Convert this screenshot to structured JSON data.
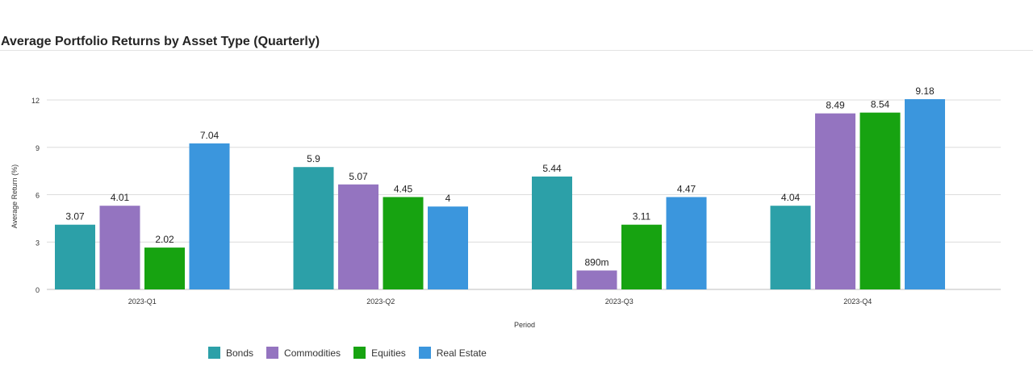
{
  "chart_data": {
    "type": "bar",
    "title": "Average Portfolio Returns by Asset Type (Quarterly)",
    "xlabel": "Period",
    "ylabel": "Average Return (%)",
    "categories": [
      "2023-Q1",
      "2023-Q2",
      "2023-Q3",
      "2023-Q4"
    ],
    "ylim": [
      0,
      12
    ],
    "yticks": [
      "0",
      "3",
      "6",
      "9",
      "12"
    ],
    "grid": true,
    "legend_position": "bottom",
    "series": [
      {
        "name": "Bonds",
        "color": "#2ca0a8",
        "values": [
          4.1,
          7.75,
          7.15,
          5.3
        ],
        "labels": [
          "3.07",
          "5.9",
          "5.44",
          "4.04"
        ]
      },
      {
        "name": "Commodities",
        "color": "#9474c0",
        "values": [
          5.3,
          6.65,
          1.2,
          11.15
        ],
        "labels": [
          "4.01",
          "5.07",
          "890m",
          "8.49"
        ]
      },
      {
        "name": "Equities",
        "color": "#17a311",
        "values": [
          2.65,
          5.85,
          4.1,
          11.2
        ],
        "labels": [
          "2.02",
          "4.45",
          "3.11",
          "8.54"
        ]
      },
      {
        "name": "Real Estate",
        "color": "#3b96dd",
        "values": [
          9.25,
          5.25,
          5.85,
          12.05
        ],
        "labels": [
          "7.04",
          "4",
          "4.47",
          "9.18"
        ]
      }
    ]
  }
}
